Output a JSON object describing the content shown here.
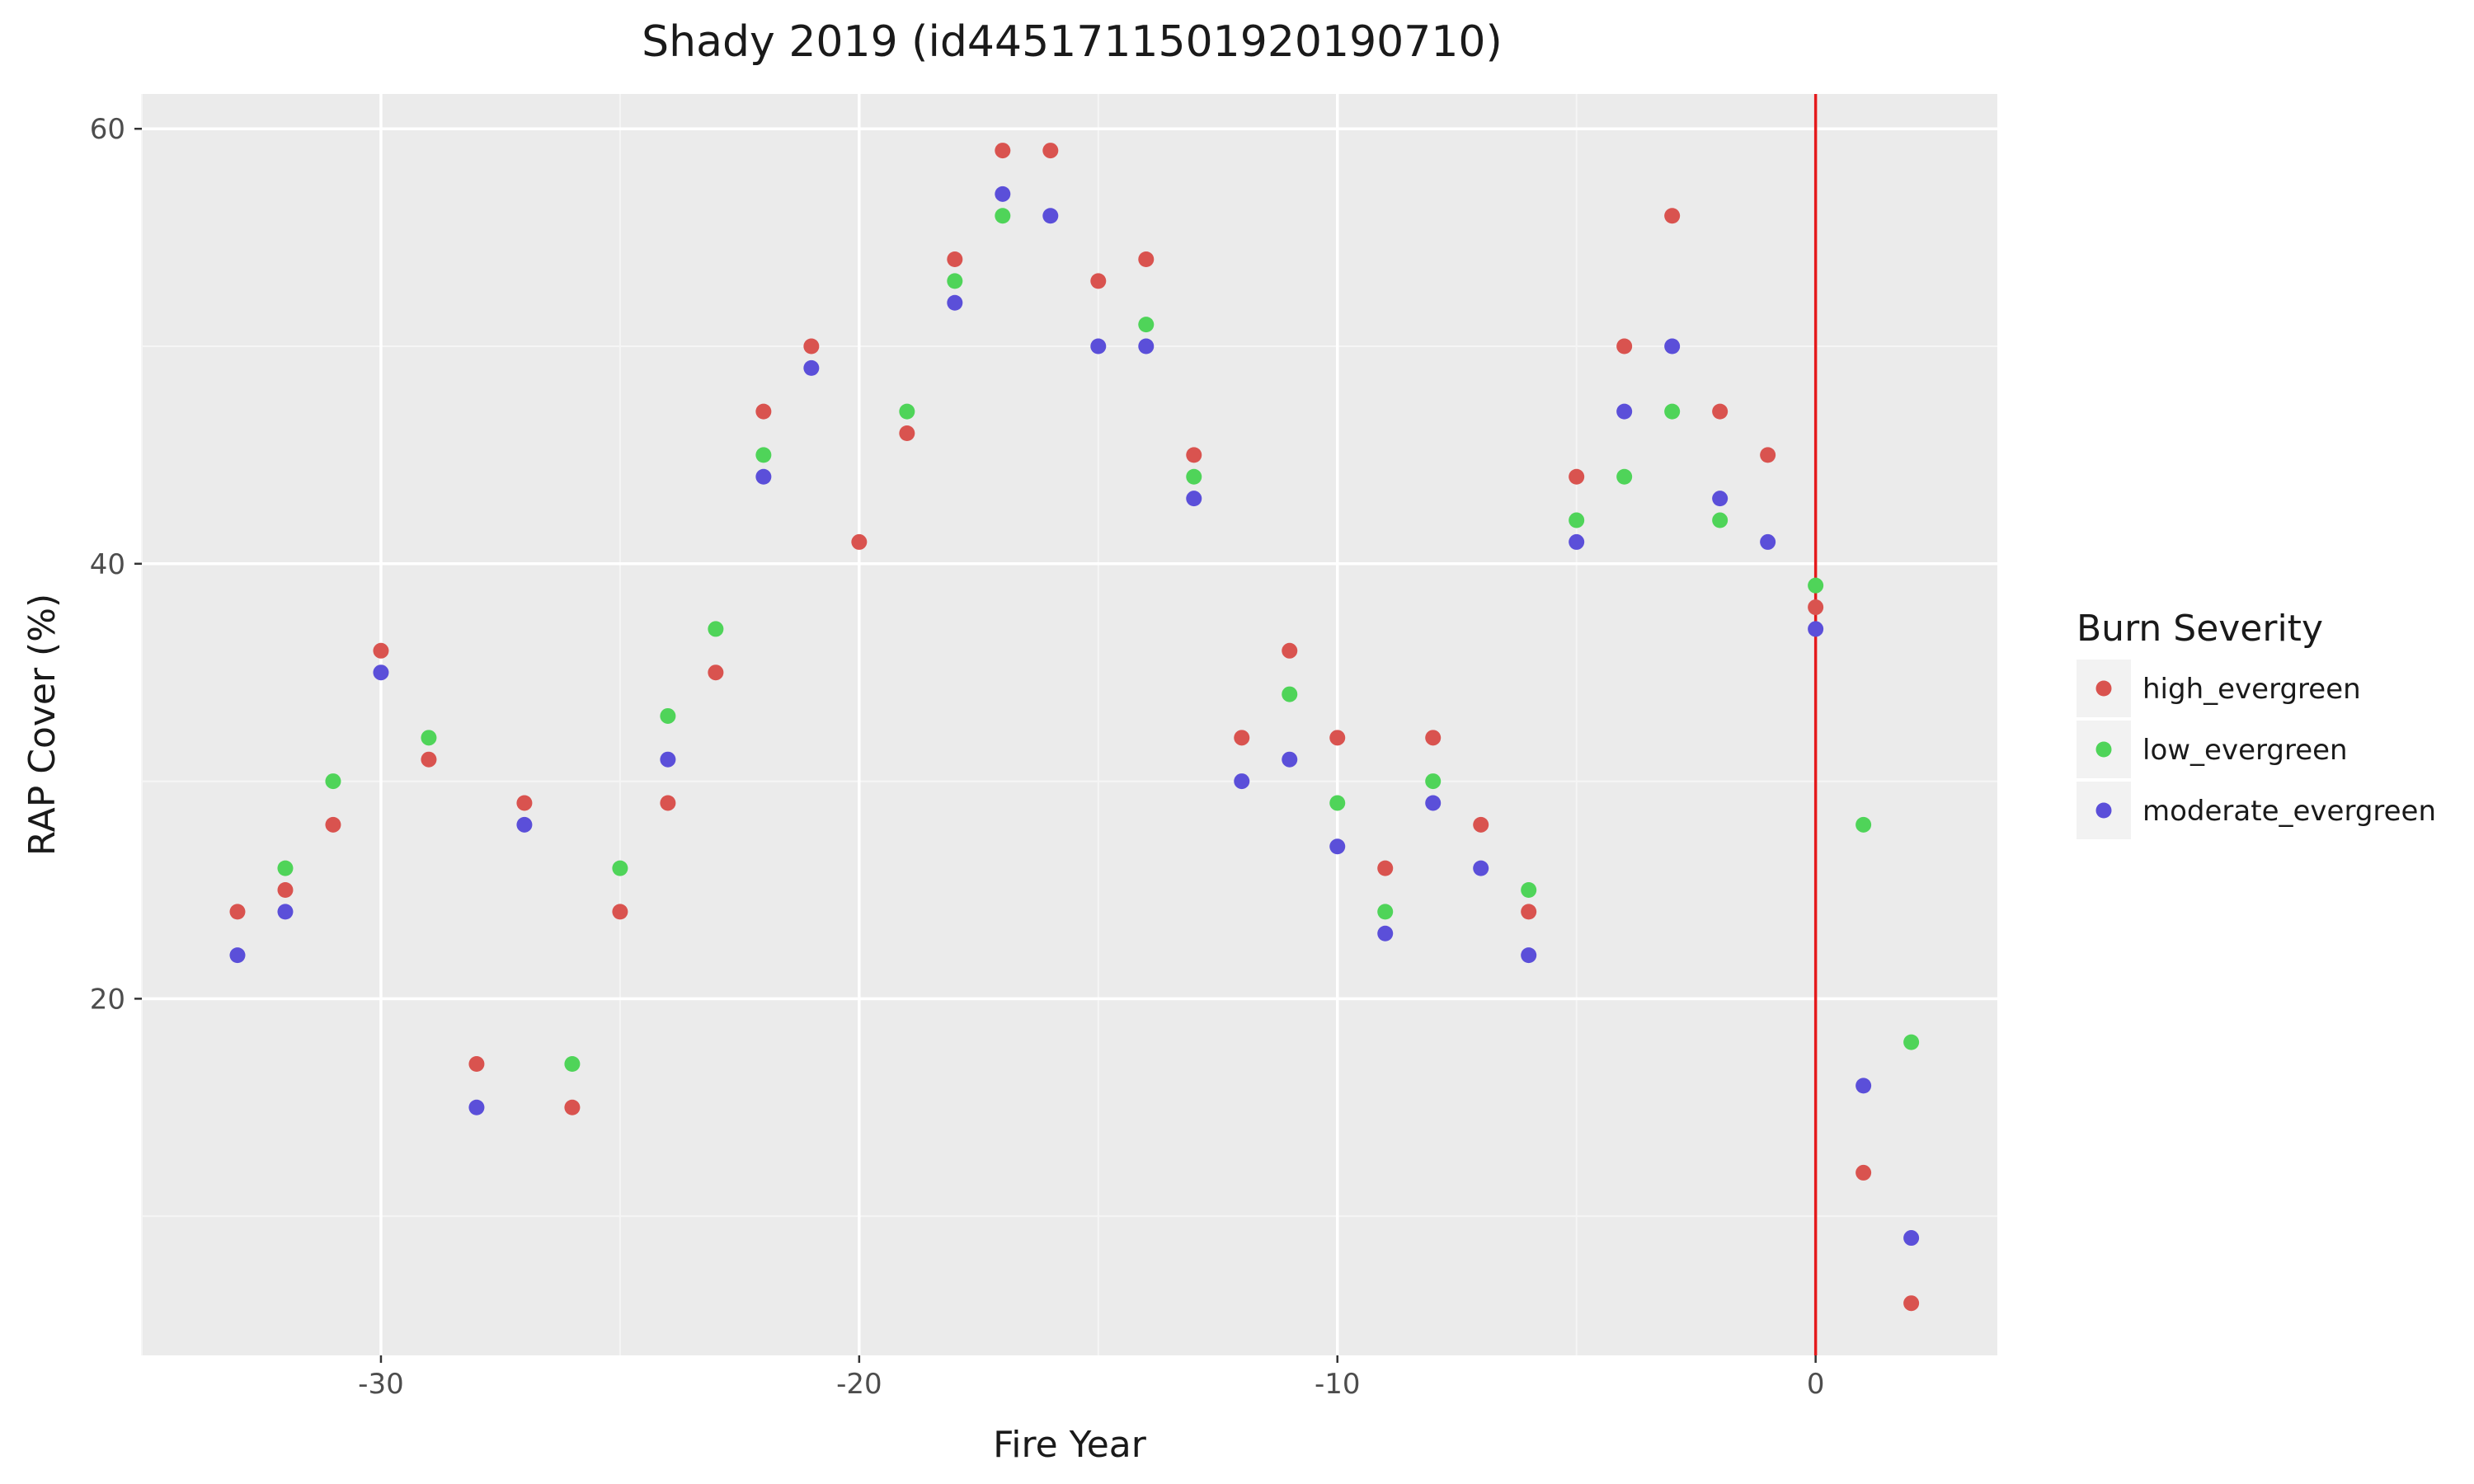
{
  "chart_data": {
    "type": "scatter",
    "title": "Shady 2019 (id4451711501920190710)",
    "xlabel": "Fire Year",
    "ylabel": "RAP Cover (%)",
    "xlim": [
      -35,
      3.8
    ],
    "ylim": [
      3.6,
      61.6
    ],
    "x_ticks": [
      -30,
      -20,
      -10,
      0
    ],
    "y_ticks": [
      20,
      40,
      60
    ],
    "grid": true,
    "vline": {
      "x": 0,
      "color": "#e41a1c"
    },
    "legend": {
      "title": "Burn Severity",
      "position": "right"
    },
    "series": [
      {
        "name": "high_evergreen",
        "color": "#d9534f",
        "points": [
          [
            -33,
            24
          ],
          [
            -32,
            25
          ],
          [
            -31,
            28
          ],
          [
            -30,
            36
          ],
          [
            -29,
            31
          ],
          [
            -28,
            17
          ],
          [
            -27,
            29
          ],
          [
            -26,
            15
          ],
          [
            -25,
            24
          ],
          [
            -24,
            29
          ],
          [
            -23,
            35
          ],
          [
            -22,
            47
          ],
          [
            -21,
            50
          ],
          [
            -20,
            41
          ],
          [
            -19,
            46
          ],
          [
            -18,
            54
          ],
          [
            -17,
            59
          ],
          [
            -16,
            59
          ],
          [
            -15,
            53
          ],
          [
            -14,
            54
          ],
          [
            -13,
            45
          ],
          [
            -12,
            32
          ],
          [
            -11,
            36
          ],
          [
            -10,
            32
          ],
          [
            -9,
            26
          ],
          [
            -8,
            32
          ],
          [
            -7,
            28
          ],
          [
            -6,
            24
          ],
          [
            -5,
            44
          ],
          [
            -4,
            50
          ],
          [
            -3,
            56
          ],
          [
            -2,
            47
          ],
          [
            -1,
            45
          ],
          [
            0,
            38
          ],
          [
            1,
            12
          ],
          [
            2,
            6
          ]
        ]
      },
      {
        "name": "low_evergreen",
        "color": "#4fd459",
        "points": [
          [
            -32,
            26
          ],
          [
            -31,
            30
          ],
          [
            -29,
            32
          ],
          [
            -26,
            17
          ],
          [
            -25,
            26
          ],
          [
            -24,
            33
          ],
          [
            -23,
            37
          ],
          [
            -22,
            45
          ],
          [
            -19,
            47
          ],
          [
            -18,
            53
          ],
          [
            -17,
            56
          ],
          [
            -14,
            51
          ],
          [
            -13,
            44
          ],
          [
            -11,
            34
          ],
          [
            -10,
            29
          ],
          [
            -9,
            24
          ],
          [
            -8,
            30
          ],
          [
            -6,
            25
          ],
          [
            -5,
            42
          ],
          [
            -4,
            44
          ],
          [
            -3,
            47
          ],
          [
            -2,
            42
          ],
          [
            0,
            39
          ],
          [
            1,
            28
          ],
          [
            2,
            18
          ]
        ]
      },
      {
        "name": "moderate_evergreen",
        "color": "#5b4fd9",
        "points": [
          [
            -33,
            22
          ],
          [
            -32,
            24
          ],
          [
            -30,
            35
          ],
          [
            -28,
            15
          ],
          [
            -27,
            28
          ],
          [
            -24,
            31
          ],
          [
            -22,
            44
          ],
          [
            -21,
            49
          ],
          [
            -18,
            52
          ],
          [
            -17,
            57
          ],
          [
            -16,
            56
          ],
          [
            -15,
            50
          ],
          [
            -14,
            50
          ],
          [
            -13,
            43
          ],
          [
            -12,
            30
          ],
          [
            -11,
            31
          ],
          [
            -10,
            27
          ],
          [
            -9,
            23
          ],
          [
            -8,
            29
          ],
          [
            -7,
            26
          ],
          [
            -6,
            22
          ],
          [
            -5,
            41
          ],
          [
            -4,
            47
          ],
          [
            -3,
            50
          ],
          [
            -2,
            43
          ],
          [
            -1,
            41
          ],
          [
            0,
            37
          ],
          [
            1,
            16
          ],
          [
            2,
            9
          ]
        ]
      }
    ]
  }
}
